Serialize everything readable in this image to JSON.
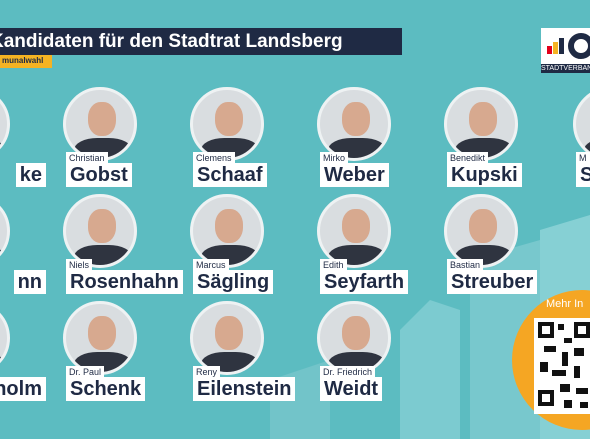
{
  "header": {
    "title": "Kandidaten für den Stadtrat Landsberg",
    "subtitle": "munalwahl"
  },
  "logo": {
    "text": "STADTVERBAN"
  },
  "candidates": [
    {
      "first": "Christian",
      "last": "Gobst"
    },
    {
      "first": "Clemens",
      "last": "Schaaf"
    },
    {
      "first": "Mirko",
      "last": "Weber"
    },
    {
      "first": "Benedikt",
      "last": "Kupski"
    },
    {
      "first": "Niels",
      "last": "Rosenhahn"
    },
    {
      "first": "Marcus",
      "last": "Sägling"
    },
    {
      "first": "Edith",
      "last": "Seyfarth"
    },
    {
      "first": "Bastian",
      "last": "Streuber"
    },
    {
      "first": "Dr. Paul",
      "last": "Schenk"
    },
    {
      "first": "Reny",
      "last": "Eilenstein"
    },
    {
      "first": "Dr. Friedrich",
      "last": "Weidt"
    }
  ],
  "edge_left": [
    "ke",
    "nn",
    "holm"
  ],
  "edge_right": {
    "first": "M",
    "last": "S"
  },
  "qr": {
    "label": "Mehr In"
  }
}
